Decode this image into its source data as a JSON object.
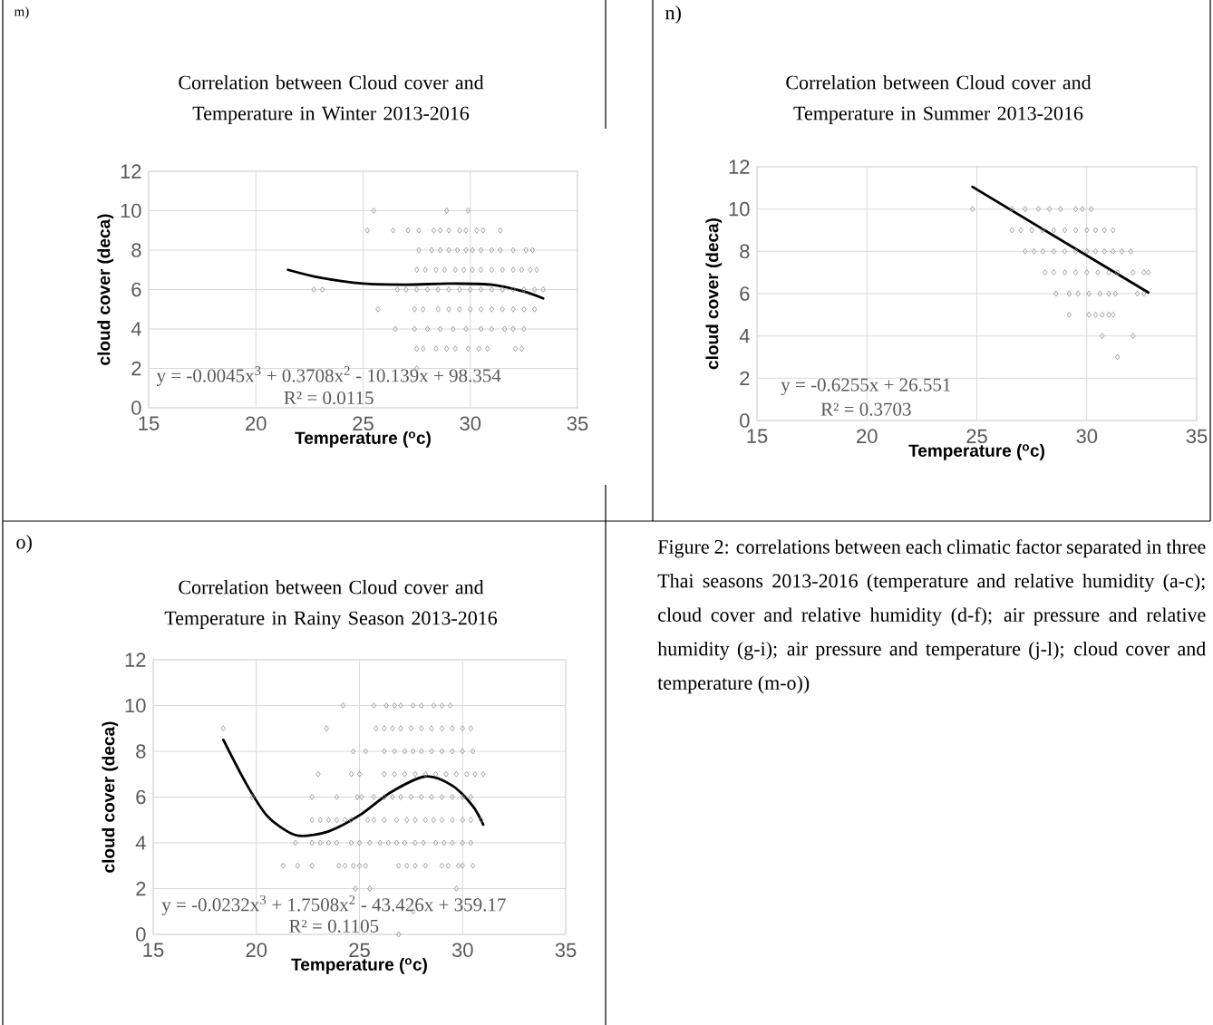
{
  "chart_data": [
    {
      "type": "scatter",
      "title": "Correlation between  Cloud cover and Temperature in Winter 2013-2016",
      "xlabel": "Temperature ($^{o}$c)",
      "ylabel": "cloud cover (deca)",
      "xlim": [
        15,
        35
      ],
      "xticks": [
        15,
        20,
        25,
        30,
        35
      ],
      "ylim": [
        0,
        12
      ],
      "yticks": [
        0,
        2,
        4,
        6,
        8,
        10,
        12
      ],
      "grid": true,
      "marker": "diamond",
      "annotations": [
        "m)",
        "y = -0.0045x$^{3}$ + 0.3708x$^{2}$ - 10.139x + 98.354",
        "R² = 0.0115"
      ],
      "series": [
        {
          "type": "scatter",
          "color": "#8c8c8c",
          "x": [
            25.5,
            28.9,
            29.9,
            25.2,
            26.4,
            27.1,
            27.6,
            28.3,
            28.6,
            29.0,
            29.5,
            29.8,
            30.3,
            30.6,
            31.4,
            27.6,
            28.2,
            28.6,
            29.0,
            29.4,
            29.8,
            30.1,
            30.5,
            31.0,
            31.4,
            32.0,
            32.6,
            32.9,
            27.5,
            27.9,
            28.4,
            28.8,
            29.3,
            29.7,
            30.1,
            30.5,
            31.0,
            31.5,
            32.0,
            32.4,
            32.8,
            33.1,
            22.7,
            23.1,
            26.6,
            27.0,
            27.5,
            28.0,
            28.5,
            29.0,
            29.5,
            30.0,
            30.5,
            31.0,
            31.5,
            32.0,
            32.5,
            33.0,
            33.4,
            25.7,
            27.4,
            27.8,
            28.5,
            29.0,
            29.5,
            30.0,
            30.5,
            31.0,
            31.5,
            32.0,
            32.5,
            33.0,
            26.5,
            27.4,
            28.0,
            28.6,
            29.2,
            29.8,
            30.5,
            31.0,
            31.6,
            32.0,
            32.5,
            27.5,
            27.8,
            28.4,
            28.9,
            29.3,
            29.9,
            30.4,
            30.8,
            32.1,
            32.4,
            27.5
          ],
          "values": [
            10,
            10,
            10,
            9,
            9,
            9,
            9,
            9,
            9,
            9,
            9,
            9,
            9,
            9,
            9,
            8,
            8,
            8,
            8,
            8,
            8,
            8,
            8,
            8,
            8,
            8,
            8,
            8,
            7,
            7,
            7,
            7,
            7,
            7,
            7,
            7,
            7,
            7,
            7,
            7,
            7,
            7,
            6,
            6,
            6,
            6,
            6,
            6,
            6,
            6,
            6,
            6,
            6,
            6,
            6,
            6,
            6,
            6,
            6,
            5,
            5,
            5,
            5,
            5,
            5,
            5,
            5,
            5,
            5,
            5,
            5,
            5,
            4,
            4,
            4,
            4,
            4,
            4,
            4,
            4,
            4,
            4,
            4,
            3,
            3,
            3,
            3,
            3,
            3,
            3,
            3,
            3,
            3,
            2
          ]
        },
        {
          "type": "line",
          "color": "#000000",
          "marker": "none",
          "x": [
            21.5,
            23,
            25,
            27,
            29,
            31,
            32.5,
            33.4
          ],
          "values": [
            7.0,
            6.6,
            6.3,
            6.25,
            6.3,
            6.25,
            5.9,
            5.55
          ]
        }
      ]
    },
    {
      "type": "scatter",
      "title": "Correlation between  Cloud cover and Temperature  in Summer 2013-2016",
      "xlabel": "Temperature ($^{o}$c)",
      "ylabel": "cloud cover (deca)",
      "xlim": [
        15,
        35
      ],
      "xticks": [
        15,
        20,
        25,
        30,
        35
      ],
      "ylim": [
        0,
        12
      ],
      "yticks": [
        0,
        2,
        4,
        6,
        8,
        10,
        12
      ],
      "grid": true,
      "marker": "diamond",
      "annotations": [
        "n)",
        "y = -0.6255x + 26.551",
        "R² = 0.3703"
      ],
      "series": [
        {
          "type": "scatter",
          "color": "#8c8c8c",
          "x": [
            24.8,
            26.6,
            27.2,
            27.8,
            28.3,
            28.8,
            29.5,
            29.8,
            30.2,
            26.6,
            27.0,
            27.5,
            28.0,
            28.5,
            29.0,
            29.5,
            30.0,
            30.4,
            30.8,
            31.2,
            27.2,
            27.6,
            28.0,
            28.5,
            29.0,
            29.5,
            30.0,
            30.4,
            30.8,
            31.2,
            31.6,
            32.0,
            28.1,
            28.5,
            29.0,
            29.5,
            30.0,
            30.5,
            31.0,
            31.4,
            32.1,
            32.6,
            32.8,
            28.6,
            29.2,
            29.6,
            30.1,
            30.6,
            31.0,
            31.3,
            32.3,
            32.6,
            29.2,
            30.1,
            30.4,
            30.7,
            31.0,
            31.2,
            30.7,
            32.1,
            31.4
          ],
          "values": [
            10,
            10,
            10,
            10,
            10,
            10,
            10,
            10,
            10,
            9,
            9,
            9,
            9,
            9,
            9,
            9,
            9,
            9,
            9,
            9,
            8,
            8,
            8,
            8,
            8,
            8,
            8,
            8,
            8,
            8,
            8,
            8,
            7,
            7,
            7,
            7,
            7,
            7,
            7,
            7,
            7,
            7,
            7,
            6,
            6,
            6,
            6,
            6,
            6,
            6,
            6,
            6,
            5,
            5,
            5,
            5,
            5,
            5,
            4,
            4,
            3
          ]
        },
        {
          "type": "line",
          "color": "#000000",
          "marker": "none",
          "x": [
            24.8,
            32.8
          ],
          "values": [
            11.05,
            6.05
          ]
        }
      ]
    },
    {
      "type": "scatter",
      "title": "Correlation between  Cloud cover and Temperature  in Rainy Season 2013-2016",
      "xlabel": "Temperature ($^{o}$c)",
      "ylabel": "cloud cover (deca)",
      "xlim": [
        15,
        35
      ],
      "xticks": [
        15,
        20,
        25,
        30,
        35
      ],
      "ylim": [
        0,
        12
      ],
      "yticks": [
        0,
        2,
        4,
        6,
        8,
        10,
        12
      ],
      "grid": true,
      "marker": "diamond",
      "annotations": [
        "o)",
        "y = -0.0232x$^{3}$ + 1.7508x$^{2}$ - 43.426x + 359.17",
        "R² = 0.1105"
      ],
      "series": [
        {
          "type": "scatter",
          "color": "#8c8c8c",
          "x": [
            24.2,
            25.7,
            26.3,
            26.7,
            27.0,
            27.6,
            28.0,
            28.6,
            29.0,
            29.4,
            18.4,
            23.4,
            25.8,
            26.2,
            26.6,
            27.0,
            27.5,
            28.0,
            28.5,
            29.0,
            29.5,
            30.0,
            30.4,
            24.7,
            25.3,
            26.2,
            26.7,
            27.2,
            27.6,
            28.0,
            28.5,
            29.0,
            29.5,
            30.0,
            30.5,
            23.0,
            24.6,
            25.0,
            26.2,
            26.7,
            27.2,
            27.7,
            28.2,
            28.7,
            29.2,
            29.7,
            30.2,
            30.6,
            31.0,
            19.8,
            22.7,
            23.9,
            24.9,
            25.1,
            25.7,
            26.2,
            26.6,
            27.0,
            27.5,
            28.0,
            28.5,
            29.0,
            29.5,
            30.0,
            30.4,
            22.7,
            23.1,
            23.5,
            23.9,
            24.3,
            24.6,
            25.4,
            25.7,
            26.2,
            26.8,
            27.3,
            27.7,
            28.2,
            28.6,
            29.0,
            29.5,
            30.0,
            30.4,
            30.9,
            21.9,
            22.7,
            23.1,
            23.5,
            23.9,
            24.6,
            25.0,
            25.5,
            26.0,
            26.4,
            26.8,
            27.2,
            27.7,
            28.1,
            28.7,
            29.1,
            29.5,
            30.0,
            30.4,
            21.3,
            22.0,
            22.7,
            24.0,
            24.3,
            24.7,
            25.0,
            25.3,
            26.9,
            27.3,
            27.7,
            28.2,
            29.0,
            29.3,
            29.8,
            30.0,
            30.5,
            24.8,
            25.5,
            29.7,
            27.6,
            26.9
          ],
          "values": [
            10,
            10,
            10,
            10,
            10,
            10,
            10,
            10,
            10,
            10,
            9,
            9,
            9,
            9,
            9,
            9,
            9,
            9,
            9,
            9,
            9,
            9,
            9,
            8,
            8,
            8,
            8,
            8,
            8,
            8,
            8,
            8,
            8,
            8,
            8,
            7,
            7,
            7,
            7,
            7,
            7,
            7,
            7,
            7,
            7,
            7,
            7,
            7,
            7,
            6,
            6,
            6,
            6,
            6,
            6,
            6,
            6,
            6,
            6,
            6,
            6,
            6,
            6,
            6,
            6,
            5,
            5,
            5,
            5,
            5,
            5,
            5,
            5,
            5,
            5,
            5,
            5,
            5,
            5,
            5,
            5,
            5,
            5,
            5,
            4,
            4,
            4,
            4,
            4,
            4,
            4,
            4,
            4,
            4,
            4,
            4,
            4,
            4,
            4,
            4,
            4,
            4,
            4,
            3,
            3,
            3,
            3,
            3,
            3,
            3,
            3,
            3,
            3,
            3,
            3,
            3,
            3,
            3,
            3,
            3,
            2,
            2,
            2,
            1,
            0
          ]
        },
        {
          "type": "line",
          "color": "#000000",
          "marker": "none",
          "x": [
            18.4,
            19.5,
            20.5,
            21.5,
            22.2,
            23.5,
            25,
            26.5,
            28.2,
            29.5,
            30.5,
            31
          ],
          "values": [
            8.5,
            6.6,
            5.2,
            4.5,
            4.3,
            4.5,
            5.2,
            6.2,
            6.9,
            6.5,
            5.6,
            4.8
          ]
        }
      ]
    },
    {
      "type": "other",
      "annotations": [
        "Figure 2: correlations between each climatic factor separated in three Thai seasons 2013-2016 (temperature and relative humidity (a-c); cloud cover and relative humidity (d-f); air pressure and relative humidity (g-i); air pressure and temperature (j-l); cloud cover and temperature (m-o))"
      ]
    }
  ]
}
